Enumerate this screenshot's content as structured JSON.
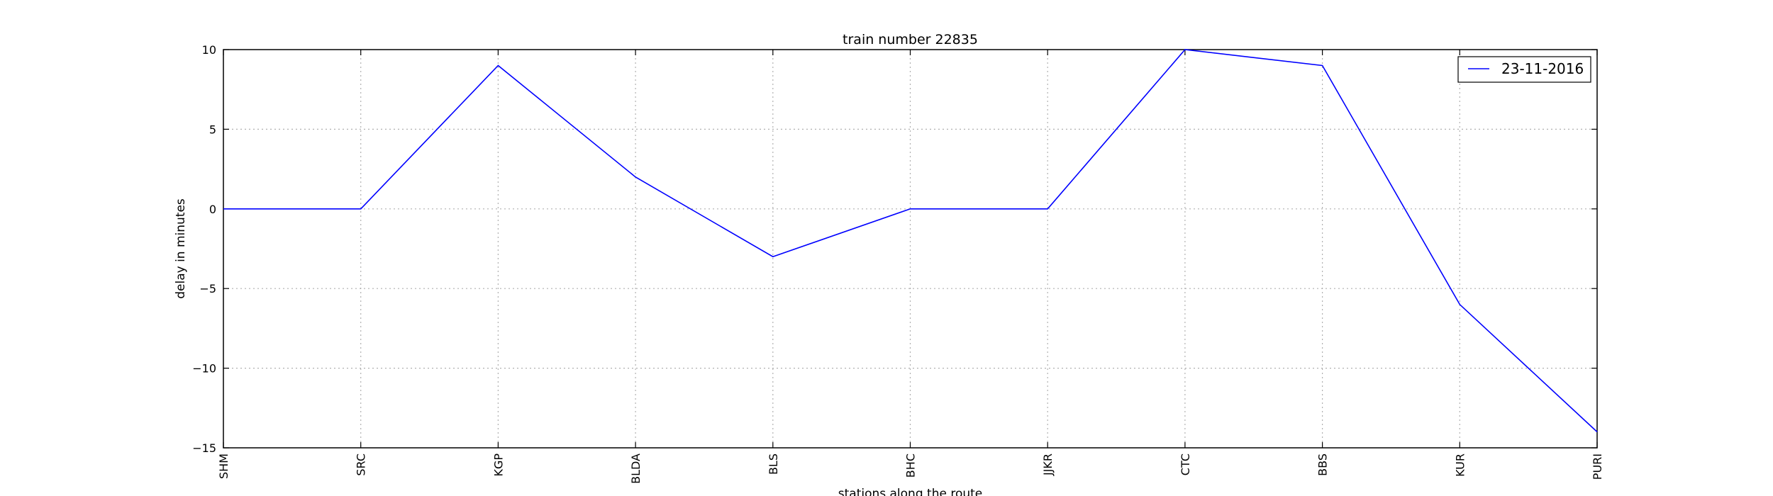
{
  "chart_data": {
    "type": "line",
    "title": "train number 22835",
    "xlabel": "stations along the route",
    "ylabel": "delay in minutes",
    "categories": [
      "SHM",
      "SRC",
      "KGP",
      "BLDA",
      "BLS",
      "BHC",
      "JJKR",
      "CTC",
      "BBS",
      "KUR",
      "PURI"
    ],
    "series": [
      {
        "name": "23-11-2016",
        "values": [
          0,
          0,
          9,
          2,
          -3,
          0,
          0,
          10,
          9,
          -6,
          -14
        ],
        "color": "#0000ff"
      }
    ],
    "ylim": [
      -15,
      10
    ],
    "yticks": [
      10,
      5,
      0,
      -5,
      -10,
      -15
    ],
    "ytick_labels": [
      "10",
      "5",
      "0",
      "−5",
      "−10",
      "−15"
    ],
    "grid": true,
    "legend_position": "top-right"
  }
}
